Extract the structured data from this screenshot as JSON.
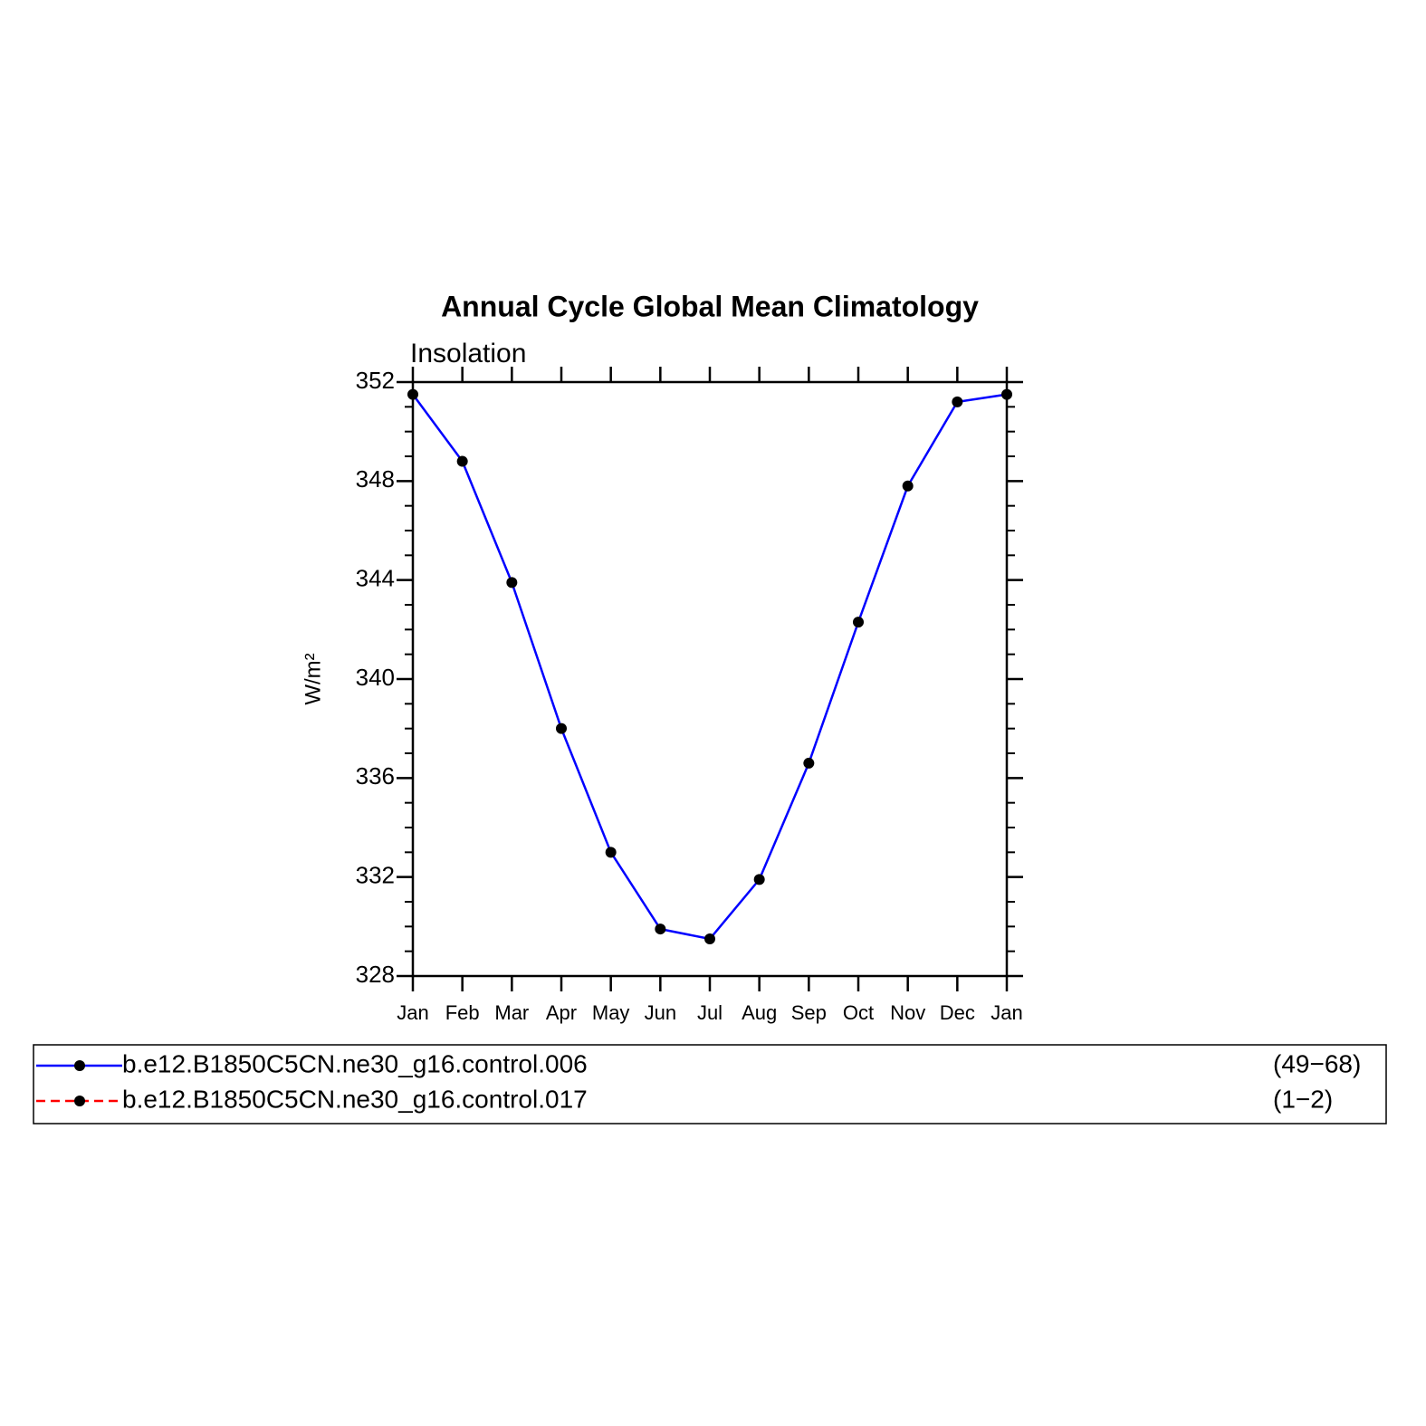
{
  "chart_data": {
    "type": "line",
    "title": "Annual Cycle Global Mean Climatology",
    "subtitle": "Insolation",
    "y_label": "W/m²",
    "categories": [
      "Jan",
      "Feb",
      "Mar",
      "Apr",
      "May",
      "Jun",
      "Jul",
      "Aug",
      "Sep",
      "Oct",
      "Nov",
      "Dec",
      "Jan"
    ],
    "series": [
      {
        "name": "b.e12.B1850C5CN.ne30_g16.control.006",
        "period": "(49−68)",
        "color": "#0000ff",
        "dash": "solid",
        "values": [
          351.5,
          348.8,
          343.9,
          338.0,
          333.0,
          329.9,
          329.5,
          331.9,
          336.6,
          342.3,
          347.8,
          351.2,
          351.5
        ]
      },
      {
        "name": "b.e12.B1850C5CN.ne30_g16.control.017",
        "period": "(1−2)",
        "color": "#ff0000",
        "dash": "dashed",
        "values": [
          null,
          null,
          null,
          null,
          null,
          null,
          null,
          null,
          null,
          null,
          null,
          null,
          null
        ]
      }
    ],
    "marker_color": "#000000",
    "ylim": [
      328,
      352
    ],
    "yticks": [
      328,
      332,
      336,
      340,
      344,
      348,
      352
    ],
    "yminorticks": [
      329,
      330,
      331,
      333,
      334,
      335,
      337,
      338,
      339,
      341,
      342,
      343,
      345,
      346,
      347,
      349,
      350,
      351
    ],
    "grid": false
  }
}
